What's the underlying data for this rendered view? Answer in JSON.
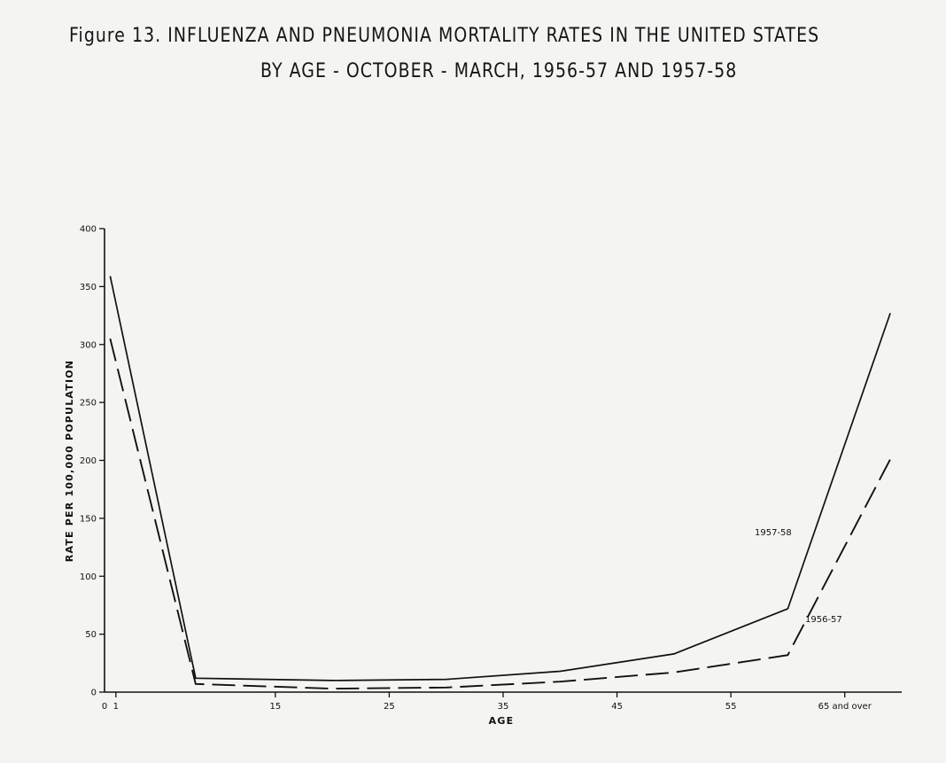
{
  "figure": {
    "title_line_1": "Figure 13.   INFLUENZA AND PNEUMONIA MORTALITY RATES IN THE UNITED STATES",
    "title_line_2": "BY AGE - OCTOBER - MARCH, 1956-57 AND 1957-58"
  },
  "chart_data": {
    "type": "line",
    "title": "INFLUENZA AND PNEUMONIA MORTALITY RATES IN THE UNITED STATES BY AGE - OCTOBER - MARCH, 1956-57 AND 1957-58",
    "xlabel": "AGE",
    "ylabel": "RATE PER 100,000 POPULATION",
    "xlim": [
      0,
      70
    ],
    "ylim": [
      0,
      400
    ],
    "x_ticks": [
      {
        "value": 0,
        "label": "0"
      },
      {
        "value": 1,
        "label": "1"
      },
      {
        "value": 15,
        "label": "15"
      },
      {
        "value": 25,
        "label": "25"
      },
      {
        "value": 35,
        "label": "35"
      },
      {
        "value": 45,
        "label": "45"
      },
      {
        "value": 55,
        "label": "55"
      },
      {
        "value": 65,
        "label": "65 and over"
      }
    ],
    "y_ticks": [
      0,
      50,
      100,
      150,
      200,
      250,
      300,
      350,
      400
    ],
    "grid": false,
    "legend": "none (series labeled directly on lines)",
    "series": [
      {
        "name": "1957-58",
        "style": "solid",
        "color": "#111111",
        "x": [
          0.5,
          8,
          20,
          30,
          40,
          50,
          60,
          69
        ],
        "y": [
          359,
          12,
          10,
          11,
          18,
          33,
          72,
          327
        ]
      },
      {
        "name": "1956-57",
        "style": "dashed",
        "color": "#111111",
        "x": [
          0.5,
          8,
          20,
          30,
          40,
          50,
          60,
          69
        ],
        "y": [
          305,
          7,
          3,
          4,
          9,
          17,
          32,
          201
        ]
      }
    ]
  }
}
